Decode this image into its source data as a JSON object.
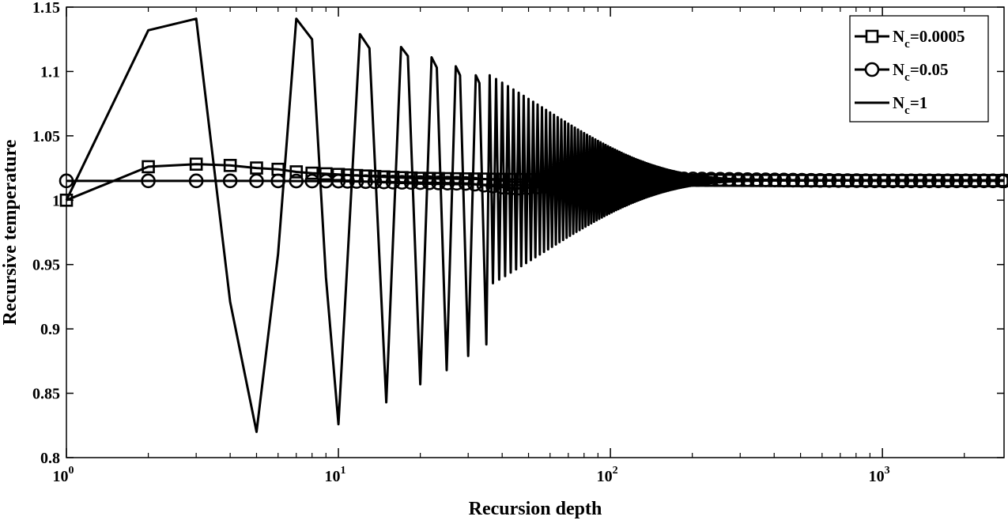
{
  "chart_data": {
    "type": "line",
    "xlabel": "Recursion depth",
    "ylabel": "Recursive temperature",
    "xscale": "log",
    "xlim": [
      1,
      2800
    ],
    "ylim": [
      0.8,
      1.15
    ],
    "grid": false,
    "legend_position": "top-right",
    "yticks": [
      "0.8",
      "0.85",
      "0.9",
      "0.95",
      "1",
      "1.05",
      "1.1",
      "1.15"
    ],
    "xticks": [
      {
        "base": "10",
        "exp": "0"
      },
      {
        "base": "10",
        "exp": "1"
      },
      {
        "base": "10",
        "exp": "2"
      },
      {
        "base": "10",
        "exp": "3"
      }
    ],
    "series": [
      {
        "name": {
          "base": "N",
          "sub": "c",
          "rest": "=0.0005"
        },
        "marker": "square",
        "color": "#000000",
        "x": [
          1,
          2,
          3,
          4,
          5,
          6,
          7,
          8,
          9,
          10,
          12,
          15,
          20,
          30,
          50,
          100,
          200,
          500,
          1000,
          2800
        ],
        "y": [
          1.0,
          1.026,
          1.028,
          1.027,
          1.025,
          1.024,
          1.022,
          1.021,
          1.0205,
          1.02,
          1.019,
          1.018,
          1.017,
          1.0165,
          1.016,
          1.0158,
          1.0155,
          1.0152,
          1.0152,
          1.0152
        ]
      },
      {
        "name": {
          "base": "N",
          "sub": "c",
          "rest": "=0.05"
        },
        "marker": "circle",
        "color": "#000000",
        "x": [
          1,
          2,
          3,
          5,
          10,
          30,
          45,
          60,
          100,
          200,
          500,
          1000,
          2800
        ],
        "y": [
          1.015,
          1.015,
          1.015,
          1.015,
          1.0148,
          1.013,
          1.009,
          1.011,
          1.0165,
          1.0165,
          1.0155,
          1.015,
          1.015
        ]
      },
      {
        "name": {
          "base": "N",
          "sub": "c",
          "rest": "=1"
        },
        "marker": "none",
        "color": "#000000",
        "x": [
          1,
          2,
          3,
          4,
          5,
          6,
          7,
          8,
          9,
          10,
          12,
          13,
          15,
          17,
          18,
          20,
          22,
          23,
          25,
          27,
          28,
          30,
          32,
          33,
          35
        ],
        "y": [
          1.0,
          1.132,
          1.141,
          0.921,
          0.82,
          0.958,
          1.141,
          1.125,
          0.94,
          0.826,
          1.129,
          1.118,
          0.843,
          1.119,
          1.112,
          0.857,
          1.111,
          1.103,
          0.868,
          1.104,
          1.097,
          0.879,
          1.097,
          1.091,
          0.888
        ],
        "oscillation": {
          "center": 1.0155,
          "amp_start": 0.083,
          "x_start": 35,
          "decay_per_step": 0.982,
          "x_end": 2800
        }
      }
    ]
  }
}
